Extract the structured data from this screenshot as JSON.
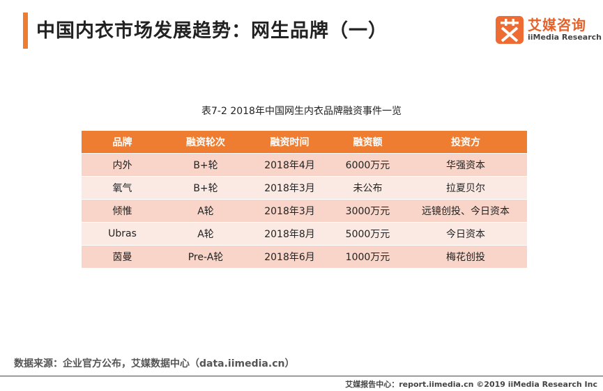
{
  "header": {
    "title": "中国内衣市场发展趋势：网生品牌（一）"
  },
  "logo": {
    "mark_glyph": "艾",
    "name_cn": "艾媒咨询",
    "name_en": "iiMedia Research",
    "brand_color": "#ee6c33"
  },
  "table": {
    "caption": "表7-2 2018年中国网生内衣品牌融资事件一览",
    "header_color": "#ee7d31",
    "columns": [
      "品牌",
      "融资轮次",
      "融资时间",
      "融资额",
      "投资方"
    ],
    "rows": [
      [
        "内外",
        "B+轮",
        "2018年4月",
        "6000万元",
        "华强资本"
      ],
      [
        "氧气",
        "B+轮",
        "2018年3月",
        "未公布",
        "拉夏贝尔"
      ],
      [
        "倾惟",
        "A轮",
        "2018年3月",
        "3000万元",
        "远镜创投、今日资本"
      ],
      [
        "Ubras",
        "A轮",
        "2018年8月",
        "5000万元",
        "今日资本"
      ],
      [
        "茵曼",
        "Pre-A轮",
        "2018年6月",
        "1000万元",
        "梅花创投"
      ]
    ]
  },
  "source": "数据来源：企业官方公布，艾媒数据中心（data.iimedia.cn）",
  "footer": "艾媒报告中心：report.iimedia.cn  ©2019  iiMedia Research  Inc"
}
